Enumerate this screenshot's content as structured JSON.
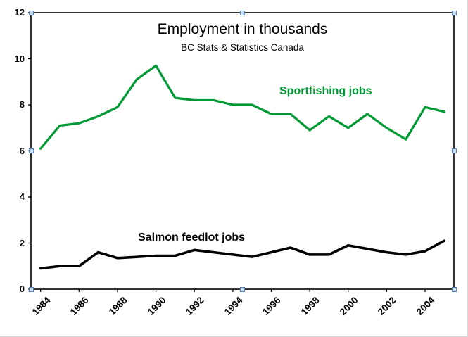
{
  "chart_data": {
    "type": "line",
    "title": "Employment in thousands",
    "subtitle": "BC Stats & Statistics Canada",
    "x": [
      1984,
      1985,
      1986,
      1987,
      1988,
      1989,
      1990,
      1991,
      1992,
      1993,
      1994,
      1995,
      1996,
      1997,
      1998,
      1999,
      2000,
      2001,
      2002,
      2003,
      2004,
      2005
    ],
    "x_label_indices": [
      0,
      2,
      4,
      6,
      8,
      10,
      12,
      14,
      16,
      18,
      20
    ],
    "x_tick_labels": [
      "1984",
      "1986",
      "1988",
      "1990",
      "1992",
      "1994",
      "1996",
      "1998",
      "2000",
      "2002",
      "2004"
    ],
    "ylim": [
      0,
      12
    ],
    "y_ticks": [
      0,
      2,
      4,
      6,
      8,
      10,
      12
    ],
    "grid": false,
    "legend": "inline-text-labels",
    "series": [
      {
        "name": "Sportfishing jobs",
        "color": "#009933",
        "values": [
          6.1,
          7.1,
          7.2,
          7.5,
          7.9,
          9.1,
          9.7,
          8.3,
          8.2,
          8.2,
          8.0,
          8.0,
          7.6,
          7.6,
          6.9,
          7.5,
          7.0,
          7.6,
          7.0,
          6.5,
          7.9,
          7.7
        ]
      },
      {
        "name": "Salmon feedlot jobs",
        "color": "#000000",
        "values": [
          0.9,
          1.0,
          1.0,
          1.6,
          1.35,
          1.4,
          1.45,
          1.45,
          1.7,
          1.6,
          1.5,
          1.4,
          1.6,
          1.8,
          1.5,
          1.5,
          1.9,
          1.75,
          1.6,
          1.5,
          1.65,
          2.1
        ]
      }
    ]
  },
  "colors": {
    "axis": "#000000",
    "selection_handle_fill": "#c9ddf2",
    "selection_handle_border": "#5b85c0"
  }
}
